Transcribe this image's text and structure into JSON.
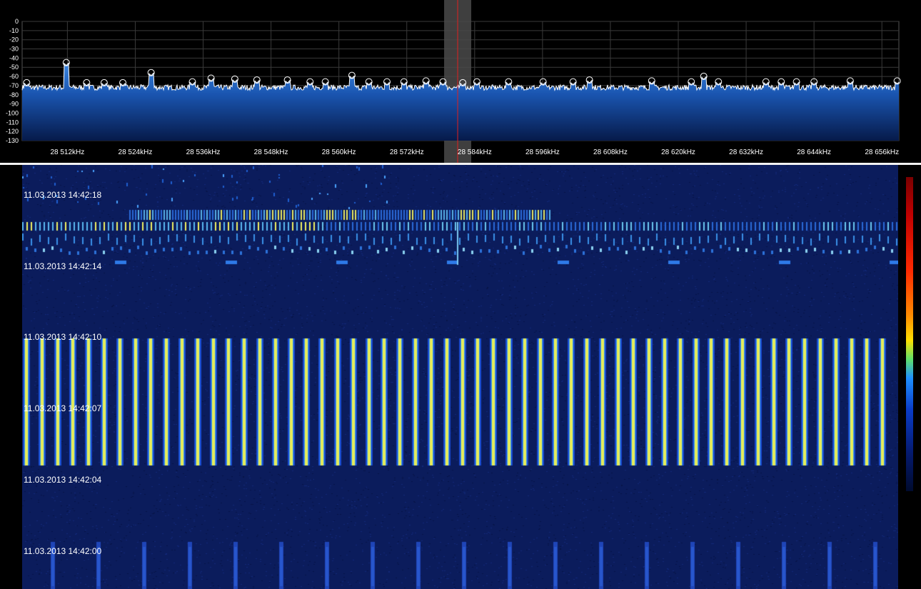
{
  "spectrum": {
    "y_axis_labels": [
      "0",
      "-10",
      "-20",
      "-30",
      "-40",
      "-50",
      "-60",
      "-70",
      "-80",
      "-90",
      "-100",
      "-110",
      "-120",
      "-130"
    ],
    "x_axis_labels": [
      "28 512kHz",
      "28 524kHz",
      "28 536kHz",
      "28 548kHz",
      "28 560kHz",
      "28 572kHz",
      "28 584kHz",
      "28 596kHz",
      "28 608kHz",
      "28 620kHz",
      "28 632kHz",
      "28 644kHz",
      "28 656kHz"
    ],
    "x_range_khz": [
      28504,
      28659
    ],
    "y_range_db": [
      0,
      -130
    ],
    "cursor_khz": 28581,
    "noise_floor_db": -72,
    "peak_markers_khz": [
      28504.8,
      28511.8,
      28515.4,
      28518.5,
      28521.8,
      28526.8,
      28534.1,
      28537.4,
      28541.6,
      28545.5,
      28550.9,
      28554.9,
      28557.6,
      28562.3,
      28565.3,
      28568.5,
      28571.5,
      28575.4,
      28578.4,
      28581.9,
      28584.4,
      28590.0,
      28596.1,
      28601.4,
      28604.3,
      28615.3,
      28622.3,
      28624.5,
      28627.1,
      28635.5,
      28638.2,
      28640.9,
      28644.0,
      28650.4,
      28658.7
    ],
    "peak_markers_db": [
      -70,
      -48,
      -70,
      -70,
      -70,
      -59,
      -69,
      -65,
      -66,
      -67,
      -67,
      -69,
      -69,
      -62,
      -69,
      -69,
      -69,
      -68,
      -69,
      -70,
      -69,
      -69,
      -69,
      -69,
      -67,
      -68,
      -69,
      -63,
      -69,
      -69,
      -69,
      -69,
      -69,
      -68,
      -68
    ],
    "colors": {
      "grid": "#3a3a3a",
      "trace": "#ffffff",
      "fill_top": "#2f7ad6",
      "fill_bottom": "#04102e",
      "cursor": "#e02020",
      "cursor_band": "#4a4a4a"
    }
  },
  "waterfall": {
    "timestamps": [
      "11.03.2013 14:42:18",
      "11.03.2013 14:42:14",
      "11.03.2013 14:42:10",
      "11.03.2013 14:42:07",
      "11.03.2013 14:42:04",
      "11.03.2013 14:42:00"
    ],
    "colors": {
      "background": "#0a1a5a"
    }
  }
}
